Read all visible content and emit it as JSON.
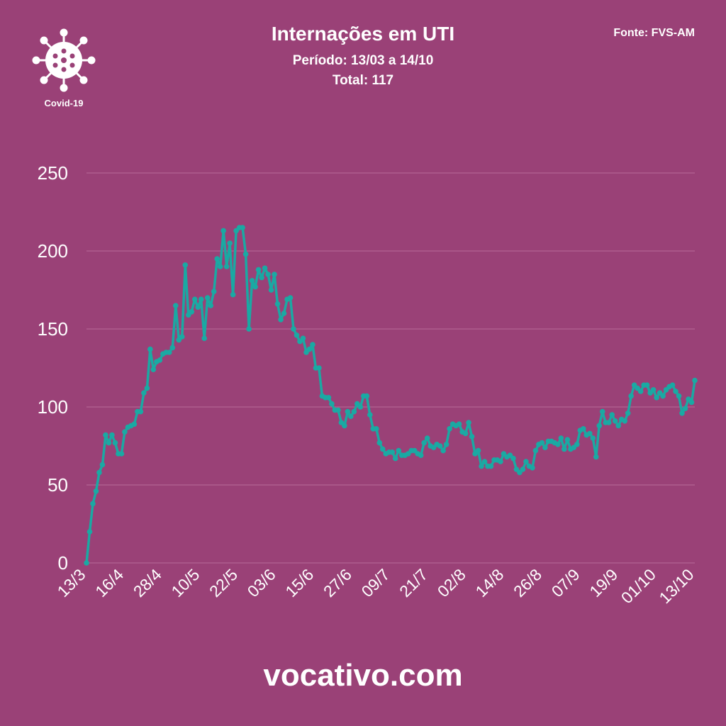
{
  "header": {
    "title": "Internações em UTI",
    "subtitle": "Período: 13/03 a 14/10",
    "total": "Total: 117",
    "source": "Fonte: FVS-AM"
  },
  "logo": {
    "label": "Covid-19",
    "icon": "virus-icon"
  },
  "footer": {
    "text": "vocativo.com"
  },
  "colors": {
    "background": "#9a4177",
    "line": "#1aa9a3",
    "grid": "#b86a98",
    "text": "#ffffff"
  },
  "chart_data": {
    "type": "line",
    "title": "Internações em UTI",
    "xlabel": "",
    "ylabel": "",
    "ylim": [
      0,
      250
    ],
    "yticks": [
      0,
      50,
      100,
      150,
      200,
      250
    ],
    "xticks": [
      "13/3",
      "16/4",
      "28/4",
      "10/5",
      "22/5",
      "03/6",
      "15/6",
      "27/6",
      "09/7",
      "21/7",
      "02/8",
      "14/8",
      "26/8",
      "07/9",
      "19/9",
      "01/10",
      "13/10"
    ],
    "grid": true,
    "legend": "none",
    "series": [
      {
        "values": [
          0,
          20,
          38,
          46,
          58,
          63,
          82,
          77,
          82,
          77,
          70,
          70,
          84,
          87,
          88,
          89,
          97,
          97,
          109,
          112,
          137,
          124,
          129,
          130,
          134,
          135,
          135,
          138,
          165,
          143,
          145,
          191,
          159,
          161,
          169,
          164,
          169,
          144,
          170,
          165,
          174,
          195,
          190,
          213,
          190,
          205,
          172,
          213,
          215,
          215,
          198,
          150,
          181,
          177,
          188,
          183,
          189,
          185,
          175,
          185,
          166,
          156,
          160,
          169,
          170,
          150,
          146,
          142,
          144,
          135,
          137,
          140,
          125,
          125,
          107,
          106,
          106,
          102,
          98,
          98,
          90,
          88,
          97,
          94,
          97,
          102,
          100,
          107,
          107,
          95,
          86,
          86,
          77,
          73,
          70,
          71,
          71,
          67,
          72,
          69,
          69,
          70,
          72,
          72,
          70,
          69,
          77,
          80,
          75,
          74,
          76,
          75,
          72,
          76,
          86,
          89,
          88,
          89,
          84,
          83,
          90,
          81,
          70,
          72,
          62,
          65,
          62,
          62,
          66,
          66,
          65,
          70,
          68,
          69,
          67,
          60,
          58,
          60,
          65,
          62,
          61,
          72,
          76,
          77,
          74,
          78,
          78,
          77,
          76,
          80,
          73,
          79,
          73,
          74,
          76,
          85,
          86,
          82,
          83,
          80,
          68,
          88,
          97,
          90,
          90,
          95,
          91,
          88,
          92,
          91,
          96,
          107,
          114,
          112,
          110,
          114,
          114,
          109,
          111,
          106,
          109,
          107,
          111,
          113,
          114,
          110,
          107,
          96,
          99,
          105,
          103,
          117
        ]
      }
    ]
  }
}
